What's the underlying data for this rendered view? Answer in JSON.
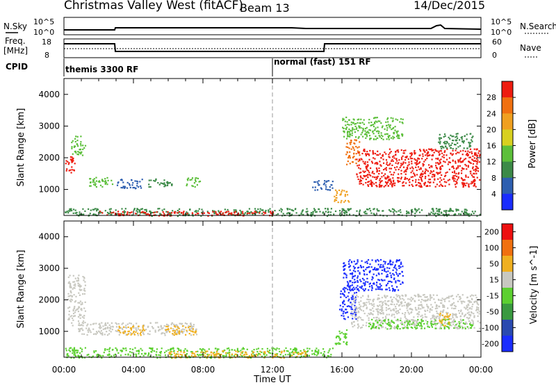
{
  "header": {
    "title": "Christmas Valley West (fitACF)",
    "beam": "Beam 13",
    "date": "14/Dec/2015"
  },
  "aux_panels": {
    "nsky_label": "N.Sky",
    "nsky_ticks": [
      "10^5",
      "10^0"
    ],
    "nsearch_label": "N.Search",
    "nsearch_ticks": [
      "10^5",
      "10^0"
    ],
    "freq_label_1": "Freq.",
    "freq_label_2": "[MHz]",
    "freq_ticks": [
      "18",
      "8"
    ],
    "nave_label": "Nave",
    "nave_ticks": [
      "60",
      "0"
    ],
    "cpid_label": "CPID",
    "cpid_segments": [
      "themis 3300 RF",
      "normal (fast) 151 RF"
    ]
  },
  "x_axis": {
    "label": "Time UT",
    "ticks": [
      "00:00",
      "04:00",
      "08:00",
      "12:00",
      "16:00",
      "20:00",
      "00:00"
    ]
  },
  "chart_data": [
    {
      "type": "heatmap",
      "name": "power",
      "ylabel": "Slant Range [km]",
      "yticks": [
        "1000",
        "2000",
        "3000",
        "4000"
      ],
      "ylim": [
        180,
        4500
      ],
      "xlim_hours": [
        0,
        24
      ],
      "colorbar": {
        "label": "Power [dB]",
        "ticks": [
          "4",
          "8",
          "12",
          "16",
          "20",
          "24",
          "28"
        ],
        "colors": [
          "#1a2dff",
          "#2e5fb0",
          "#3c8a48",
          "#5cbf3a",
          "#d8d020",
          "#f0a020",
          "#f07010",
          "#ee1c10"
        ]
      },
      "regions": [
        {
          "t0": 0.0,
          "t1": 0.6,
          "r0": 1550,
          "r1": 2100,
          "color": "#ee1c10"
        },
        {
          "t0": 0.4,
          "t1": 1.2,
          "r0": 2100,
          "r1": 2700,
          "color": "#5cbf3a"
        },
        {
          "t0": 1.3,
          "t1": 2.8,
          "r0": 1100,
          "r1": 1400,
          "color": "#5cbf3a"
        },
        {
          "t0": 3.0,
          "t1": 4.5,
          "r0": 1050,
          "r1": 1350,
          "color": "#2e5fb0"
        },
        {
          "t0": 4.8,
          "t1": 6.2,
          "r0": 1100,
          "r1": 1350,
          "color": "#3c8a48"
        },
        {
          "t0": 7.0,
          "t1": 7.8,
          "r0": 1100,
          "r1": 1400,
          "color": "#5cbf3a"
        },
        {
          "t0": 0.0,
          "t1": 24.0,
          "r0": 180,
          "r1": 420,
          "color": "#3c8a48"
        },
        {
          "t0": 2.0,
          "t1": 12.0,
          "r0": 180,
          "r1": 330,
          "color": "#ee1c10"
        },
        {
          "t0": 14.2,
          "t1": 15.5,
          "r0": 1000,
          "r1": 1300,
          "color": "#2e5fb0"
        },
        {
          "t0": 15.5,
          "t1": 16.4,
          "r0": 600,
          "r1": 1000,
          "color": "#f0a020"
        },
        {
          "t0": 16.2,
          "t1": 17.0,
          "r0": 1800,
          "r1": 2600,
          "color": "#f07010"
        },
        {
          "t0": 16.0,
          "t1": 19.5,
          "r0": 2600,
          "r1": 3300,
          "color": "#5cbf3a"
        },
        {
          "t0": 16.8,
          "t1": 23.9,
          "r0": 1100,
          "r1": 2300,
          "color": "#ee1c10"
        },
        {
          "t0": 21.5,
          "t1": 23.5,
          "r0": 2300,
          "r1": 2800,
          "color": "#3c8a48"
        }
      ]
    },
    {
      "type": "heatmap",
      "name": "velocity",
      "ylabel": "Slant Range [km]",
      "yticks": [
        "1000",
        "2000",
        "3000",
        "4000"
      ],
      "ylim": [
        180,
        4500
      ],
      "xlim_hours": [
        0,
        24
      ],
      "colorbar": {
        "label": "Velocity [m s^-1]",
        "ticks": [
          "200",
          "100",
          "50",
          "15",
          "-15",
          "-50",
          "-100",
          "-200"
        ],
        "colors": [
          "#1a2dff",
          "#2a4ab0",
          "#3a9a40",
          "#5cd030",
          "#c8c8c0",
          "#f0b020",
          "#f07010",
          "#ee1010"
        ]
      },
      "regions": [
        {
          "t0": 0.2,
          "t1": 1.2,
          "r0": 1200,
          "r1": 2800,
          "color": "#c8c8c0"
        },
        {
          "t0": 0.8,
          "t1": 7.6,
          "r0": 900,
          "r1": 1300,
          "color": "#c8c8c0"
        },
        {
          "t0": 5.8,
          "t1": 7.6,
          "r0": 900,
          "r1": 1200,
          "color": "#f0b020"
        },
        {
          "t0": 3.0,
          "t1": 4.6,
          "r0": 900,
          "r1": 1200,
          "color": "#f0b020"
        },
        {
          "t0": 0.0,
          "t1": 15.5,
          "r0": 180,
          "r1": 500,
          "color": "#5cd030"
        },
        {
          "t0": 6.0,
          "t1": 14.0,
          "r0": 180,
          "r1": 400,
          "color": "#f0b020"
        },
        {
          "t0": 15.5,
          "t1": 16.3,
          "r0": 600,
          "r1": 1100,
          "color": "#5cd030"
        },
        {
          "t0": 15.8,
          "t1": 16.8,
          "r0": 1400,
          "r1": 2300,
          "color": "#1a2dff"
        },
        {
          "t0": 16.0,
          "t1": 19.5,
          "r0": 2300,
          "r1": 3300,
          "color": "#1a2dff"
        },
        {
          "t0": 16.5,
          "t1": 23.9,
          "r0": 1100,
          "r1": 2200,
          "color": "#c8c8c0"
        },
        {
          "t0": 17.5,
          "t1": 23.5,
          "r0": 1100,
          "r1": 1400,
          "color": "#5cd030"
        },
        {
          "t0": 21.5,
          "t1": 22.2,
          "r0": 1200,
          "r1": 1600,
          "color": "#f0b020"
        }
      ]
    }
  ]
}
